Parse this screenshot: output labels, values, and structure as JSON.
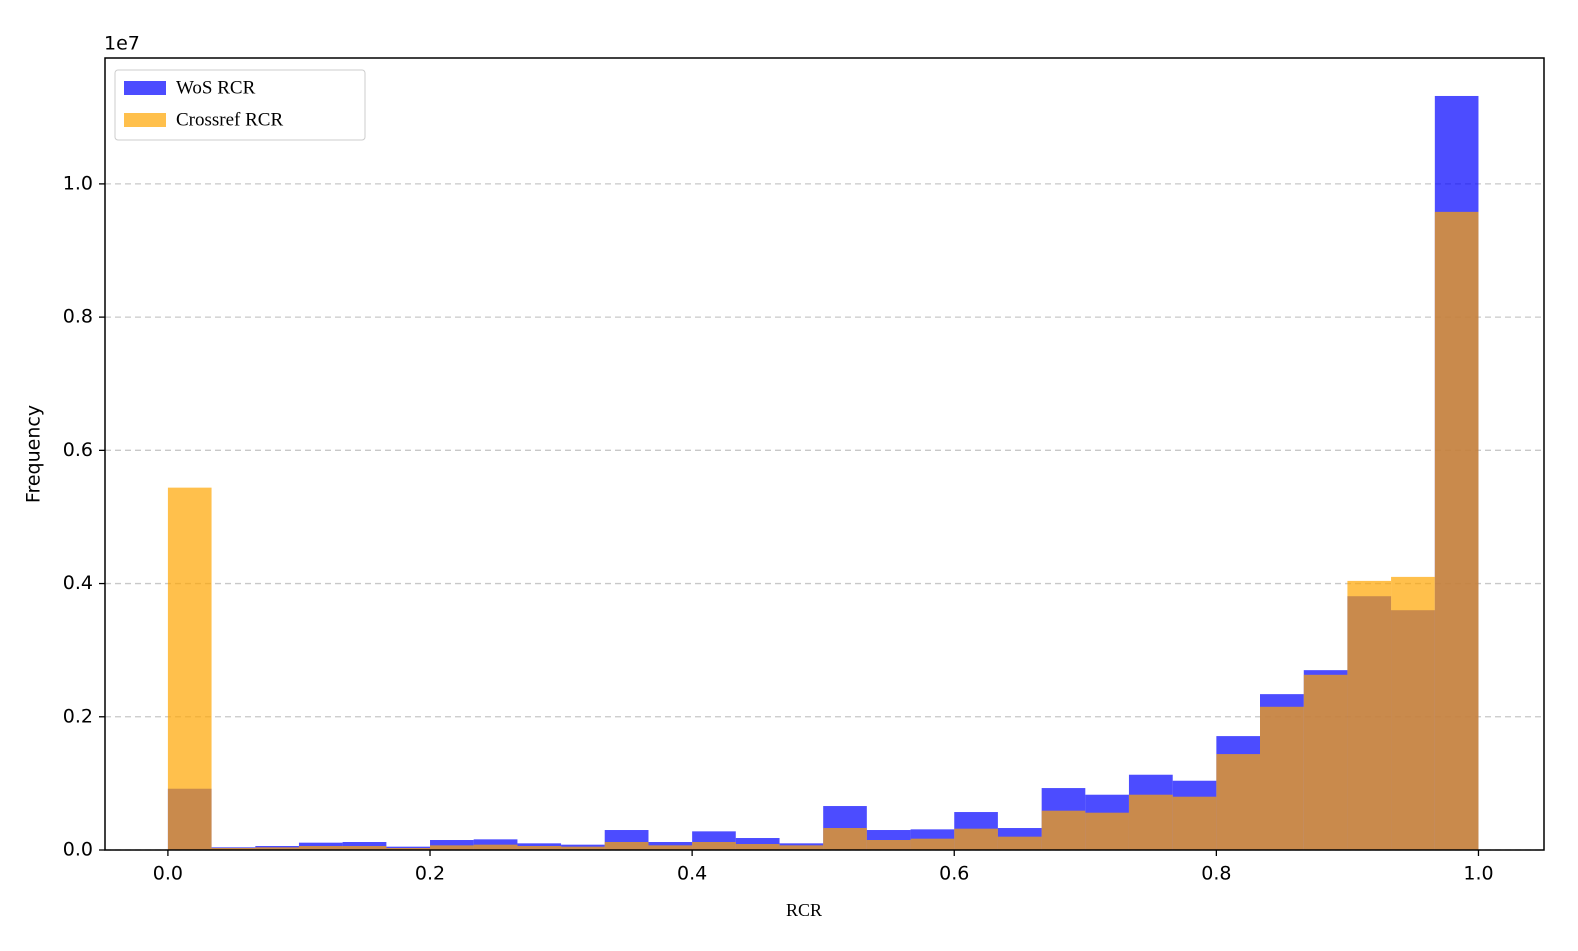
{
  "chart_data": {
    "type": "histogram",
    "xlabel": "RCR",
    "ylabel": "Frequency",
    "y_offset_label": "1e7",
    "bins": [
      0,
      0.0333,
      0.0667,
      0.1,
      0.1333,
      0.1667,
      0.2,
      0.2333,
      0.2667,
      0.3,
      0.3333,
      0.3667,
      0.4,
      0.4333,
      0.4667,
      0.5,
      0.5333,
      0.5667,
      0.6,
      0.6333,
      0.6667,
      0.7,
      0.7333,
      0.7667,
      0.8,
      0.8333,
      0.8667,
      0.9,
      0.9333,
      0.9667,
      1
    ],
    "series": [
      {
        "name": "WoS RCR",
        "color": "#0000ff",
        "values": [
          0.092,
          0.004,
          0.006,
          0.011,
          0.012,
          0.005,
          0.015,
          0.016,
          0.01,
          0.008,
          0.03,
          0.012,
          0.028,
          0.018,
          0.01,
          0.066,
          0.03,
          0.031,
          0.057,
          0.033,
          0.093,
          0.083,
          0.113,
          0.104,
          0.171,
          0.234,
          0.27,
          0.381,
          0.36,
          1.132
        ]
      },
      {
        "name": "Crossref RCR",
        "color": "#ffa500",
        "values": [
          0.544,
          0.003,
          0.004,
          0.006,
          0.006,
          0.003,
          0.007,
          0.008,
          0.006,
          0.005,
          0.012,
          0.007,
          0.012,
          0.009,
          0.007,
          0.033,
          0.015,
          0.017,
          0.032,
          0.02,
          0.059,
          0.056,
          0.083,
          0.08,
          0.144,
          0.215,
          0.263,
          0.404,
          0.41,
          0.958
        ]
      }
    ],
    "alpha": 0.7,
    "xlim": [
      -0.048,
      1.05
    ],
    "ylim": [
      0,
      1.189
    ],
    "xticks": [
      {
        "value": 0,
        "label": "0.0"
      },
      0.2,
      0.4,
      0.6,
      0.8,
      {
        "value": 1,
        "label": "1.0"
      }
    ],
    "yticks": [
      {
        "value": 0,
        "label": "0.0"
      },
      0.2,
      0.4,
      0.6,
      0.8,
      {
        "value": 1,
        "label": "1.0"
      }
    ],
    "grid": true,
    "legend_loc": "upper left"
  }
}
